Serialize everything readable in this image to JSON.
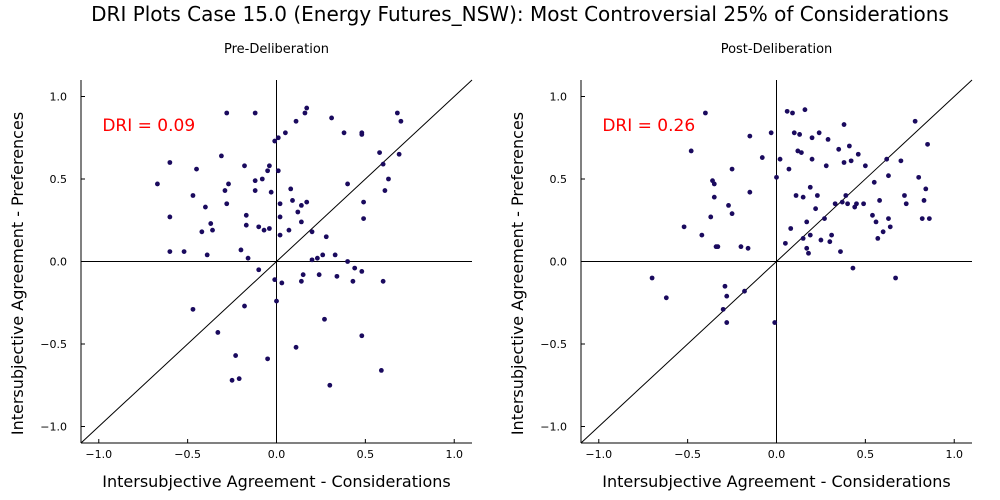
{
  "title": "DRI Plots Case 15.0 (Energy Futures_NSW): Most Controversial 25% of Considerations",
  "chart_data": [
    {
      "type": "scatter",
      "subtitle": "Pre-Deliberation",
      "xlabel": "Intersubjective Agreement - Considerations",
      "ylabel": "Intersubjective Agreement - Preferences",
      "annotation": "DRI = 0.09",
      "xlim": [
        -1.1,
        1.1
      ],
      "ylim": [
        -1.1,
        1.1
      ],
      "xticks": [
        "−1.0",
        "−0.5",
        "0.0",
        "0.5",
        "1.0"
      ],
      "yticks": [
        "−1.0",
        "−0.5",
        "0.0",
        "0.5",
        "1.0"
      ],
      "point_color": "#1a0a5e",
      "annotation_color": "#ff0000",
      "points": [
        [
          -0.67,
          0.47
        ],
        [
          -0.6,
          0.6
        ],
        [
          -0.6,
          0.27
        ],
        [
          -0.6,
          0.06
        ],
        [
          -0.52,
          0.06
        ],
        [
          -0.47,
          0.4
        ],
        [
          -0.45,
          0.56
        ],
        [
          -0.47,
          -0.29
        ],
        [
          -0.42,
          0.18
        ],
        [
          -0.4,
          0.33
        ],
        [
          -0.39,
          0.04
        ],
        [
          -0.37,
          0.23
        ],
        [
          -0.36,
          0.19
        ],
        [
          -0.33,
          -0.43
        ],
        [
          -0.31,
          0.64
        ],
        [
          -0.29,
          0.43
        ],
        [
          -0.28,
          0.35
        ],
        [
          -0.27,
          0.47
        ],
        [
          -0.28,
          0.9
        ],
        [
          -0.25,
          -0.72
        ],
        [
          -0.23,
          -0.57
        ],
        [
          -0.21,
          -0.71
        ],
        [
          -0.2,
          0.07
        ],
        [
          -0.18,
          0.58
        ],
        [
          -0.17,
          0.28
        ],
        [
          -0.17,
          0.22
        ],
        [
          -0.18,
          -0.27
        ],
        [
          -0.16,
          0.02
        ],
        [
          -0.12,
          0.9
        ],
        [
          -0.12,
          0.43
        ],
        [
          -0.12,
          0.49
        ],
        [
          -0.1,
          0.21
        ],
        [
          -0.1,
          -0.05
        ],
        [
          -0.08,
          0.5
        ],
        [
          -0.07,
          0.19
        ],
        [
          -0.05,
          0.55
        ],
        [
          -0.05,
          -0.59
        ],
        [
          -0.04,
          0.58
        ],
        [
          -0.04,
          0.2
        ],
        [
          -0.03,
          0.42
        ],
        [
          -0.01,
          -0.11
        ],
        [
          -0.01,
          0.73
        ],
        [
          0.0,
          -0.24
        ],
        [
          0.01,
          0.75
        ],
        [
          0.01,
          0.55
        ],
        [
          0.02,
          0.35
        ],
        [
          0.02,
          0.27
        ],
        [
          0.02,
          0.16
        ],
        [
          0.03,
          -0.13
        ],
        [
          0.05,
          0.78
        ],
        [
          0.07,
          0.19
        ],
        [
          0.08,
          0.44
        ],
        [
          0.09,
          0.37
        ],
        [
          0.11,
          0.85
        ],
        [
          0.11,
          -0.52
        ],
        [
          0.12,
          0.3
        ],
        [
          0.14,
          0.34
        ],
        [
          0.14,
          0.24
        ],
        [
          0.14,
          -0.12
        ],
        [
          0.15,
          -0.08
        ],
        [
          0.16,
          0.9
        ],
        [
          0.17,
          0.93
        ],
        [
          0.17,
          0.36
        ],
        [
          0.2,
          0.18
        ],
        [
          0.2,
          0.01
        ],
        [
          0.23,
          0.02
        ],
        [
          0.24,
          -0.08
        ],
        [
          0.26,
          0.04
        ],
        [
          0.27,
          -0.35
        ],
        [
          0.28,
          0.15
        ],
        [
          0.3,
          -0.75
        ],
        [
          0.31,
          0.87
        ],
        [
          0.33,
          0.04
        ],
        [
          0.34,
          -0.09
        ],
        [
          0.38,
          0.78
        ],
        [
          0.4,
          0.47
        ],
        [
          0.4,
          0.0
        ],
        [
          0.43,
          -0.12
        ],
        [
          0.44,
          -0.04
        ],
        [
          0.48,
          0.78
        ],
        [
          0.48,
          0.77
        ],
        [
          0.49,
          0.36
        ],
        [
          0.49,
          0.26
        ],
        [
          0.48,
          -0.06
        ],
        [
          0.48,
          -0.45
        ],
        [
          0.58,
          0.66
        ],
        [
          0.6,
          0.59
        ],
        [
          0.6,
          -0.12
        ],
        [
          0.59,
          -0.66
        ],
        [
          0.61,
          0.43
        ],
        [
          0.63,
          0.5
        ],
        [
          0.68,
          0.9
        ],
        [
          0.69,
          0.65
        ],
        [
          0.7,
          0.85
        ]
      ]
    },
    {
      "type": "scatter",
      "subtitle": "Post-Deliberation",
      "xlabel": "Intersubjective Agreement - Considerations",
      "ylabel": "Intersubjective Agreement - Preferences",
      "annotation": "DRI = 0.26",
      "xlim": [
        -1.1,
        1.1
      ],
      "ylim": [
        -1.1,
        1.1
      ],
      "xticks": [
        "−1.0",
        "−0.5",
        "0.0",
        "0.5",
        "1.0"
      ],
      "yticks": [
        "−1.0",
        "−0.5",
        "0.0",
        "0.5",
        "1.0"
      ],
      "point_color": "#1a0a5e",
      "annotation_color": "#ff0000",
      "points": [
        [
          -0.7,
          -0.1
        ],
        [
          -0.62,
          -0.22
        ],
        [
          -0.52,
          0.21
        ],
        [
          -0.48,
          0.67
        ],
        [
          -0.42,
          0.16
        ],
        [
          -0.4,
          0.9
        ],
        [
          -0.37,
          0.27
        ],
        [
          -0.36,
          0.49
        ],
        [
          -0.35,
          0.47
        ],
        [
          -0.35,
          0.39
        ],
        [
          -0.34,
          0.09
        ],
        [
          -0.33,
          0.09
        ],
        [
          -0.3,
          -0.29
        ],
        [
          -0.29,
          -0.15
        ],
        [
          -0.28,
          -0.21
        ],
        [
          -0.28,
          -0.37
        ],
        [
          -0.27,
          0.34
        ],
        [
          -0.25,
          0.56
        ],
        [
          -0.2,
          0.09
        ],
        [
          -0.18,
          -0.18
        ],
        [
          -0.16,
          0.08
        ],
        [
          -0.15,
          0.76
        ],
        [
          -0.15,
          0.42
        ],
        [
          -0.08,
          0.63
        ],
        [
          -0.03,
          0.78
        ],
        [
          -0.01,
          -0.37
        ],
        [
          0.0,
          0.51
        ],
        [
          0.02,
          0.62
        ],
        [
          0.05,
          0.11
        ],
        [
          0.06,
          0.91
        ],
        [
          0.07,
          0.56
        ],
        [
          0.08,
          0.2
        ],
        [
          0.09,
          0.9
        ],
        [
          0.1,
          0.78
        ],
        [
          0.11,
          0.4
        ],
        [
          0.12,
          0.67
        ],
        [
          0.13,
          0.77
        ],
        [
          0.14,
          0.66
        ],
        [
          0.15,
          0.39
        ],
        [
          0.15,
          0.14
        ],
        [
          0.16,
          0.92
        ],
        [
          0.17,
          0.24
        ],
        [
          0.17,
          0.08
        ],
        [
          0.18,
          0.05
        ],
        [
          0.19,
          0.45
        ],
        [
          0.19,
          0.16
        ],
        [
          0.2,
          0.75
        ],
        [
          0.2,
          0.62
        ],
        [
          0.22,
          0.32
        ],
        [
          0.23,
          0.4
        ],
        [
          0.24,
          0.78
        ],
        [
          0.25,
          0.13
        ],
        [
          0.27,
          0.26
        ],
        [
          0.28,
          0.58
        ],
        [
          0.29,
          0.74
        ],
        [
          0.3,
          0.12
        ],
        [
          0.31,
          0.16
        ],
        [
          0.33,
          0.35
        ],
        [
          0.35,
          0.68
        ],
        [
          0.37,
          0.36
        ],
        [
          0.38,
          0.83
        ],
        [
          0.38,
          0.6
        ],
        [
          0.39,
          0.4
        ],
        [
          0.4,
          0.35
        ],
        [
          0.41,
          0.7
        ],
        [
          0.42,
          0.61
        ],
        [
          0.43,
          -0.04
        ],
        [
          0.44,
          0.33
        ],
        [
          0.45,
          0.35
        ],
        [
          0.46,
          0.65
        ],
        [
          0.49,
          0.35
        ],
        [
          0.5,
          0.58
        ],
        [
          0.54,
          0.28
        ],
        [
          0.55,
          0.48
        ],
        [
          0.56,
          0.24
        ],
        [
          0.57,
          0.14
        ],
        [
          0.6,
          0.18
        ],
        [
          0.62,
          0.62
        ],
        [
          0.63,
          0.52
        ],
        [
          0.63,
          0.26
        ],
        [
          0.64,
          0.21
        ],
        [
          0.67,
          -0.1
        ],
        [
          0.7,
          0.61
        ],
        [
          0.72,
          0.4
        ],
        [
          0.73,
          0.35
        ],
        [
          0.78,
          0.85
        ],
        [
          0.8,
          0.51
        ],
        [
          0.82,
          0.26
        ],
        [
          0.83,
          0.37
        ],
        [
          0.84,
          0.44
        ],
        [
          0.85,
          0.71
        ],
        [
          0.86,
          0.26
        ],
        [
          -0.25,
          0.29
        ],
        [
          0.36,
          0.06
        ],
        [
          0.58,
          0.37
        ]
      ]
    }
  ]
}
